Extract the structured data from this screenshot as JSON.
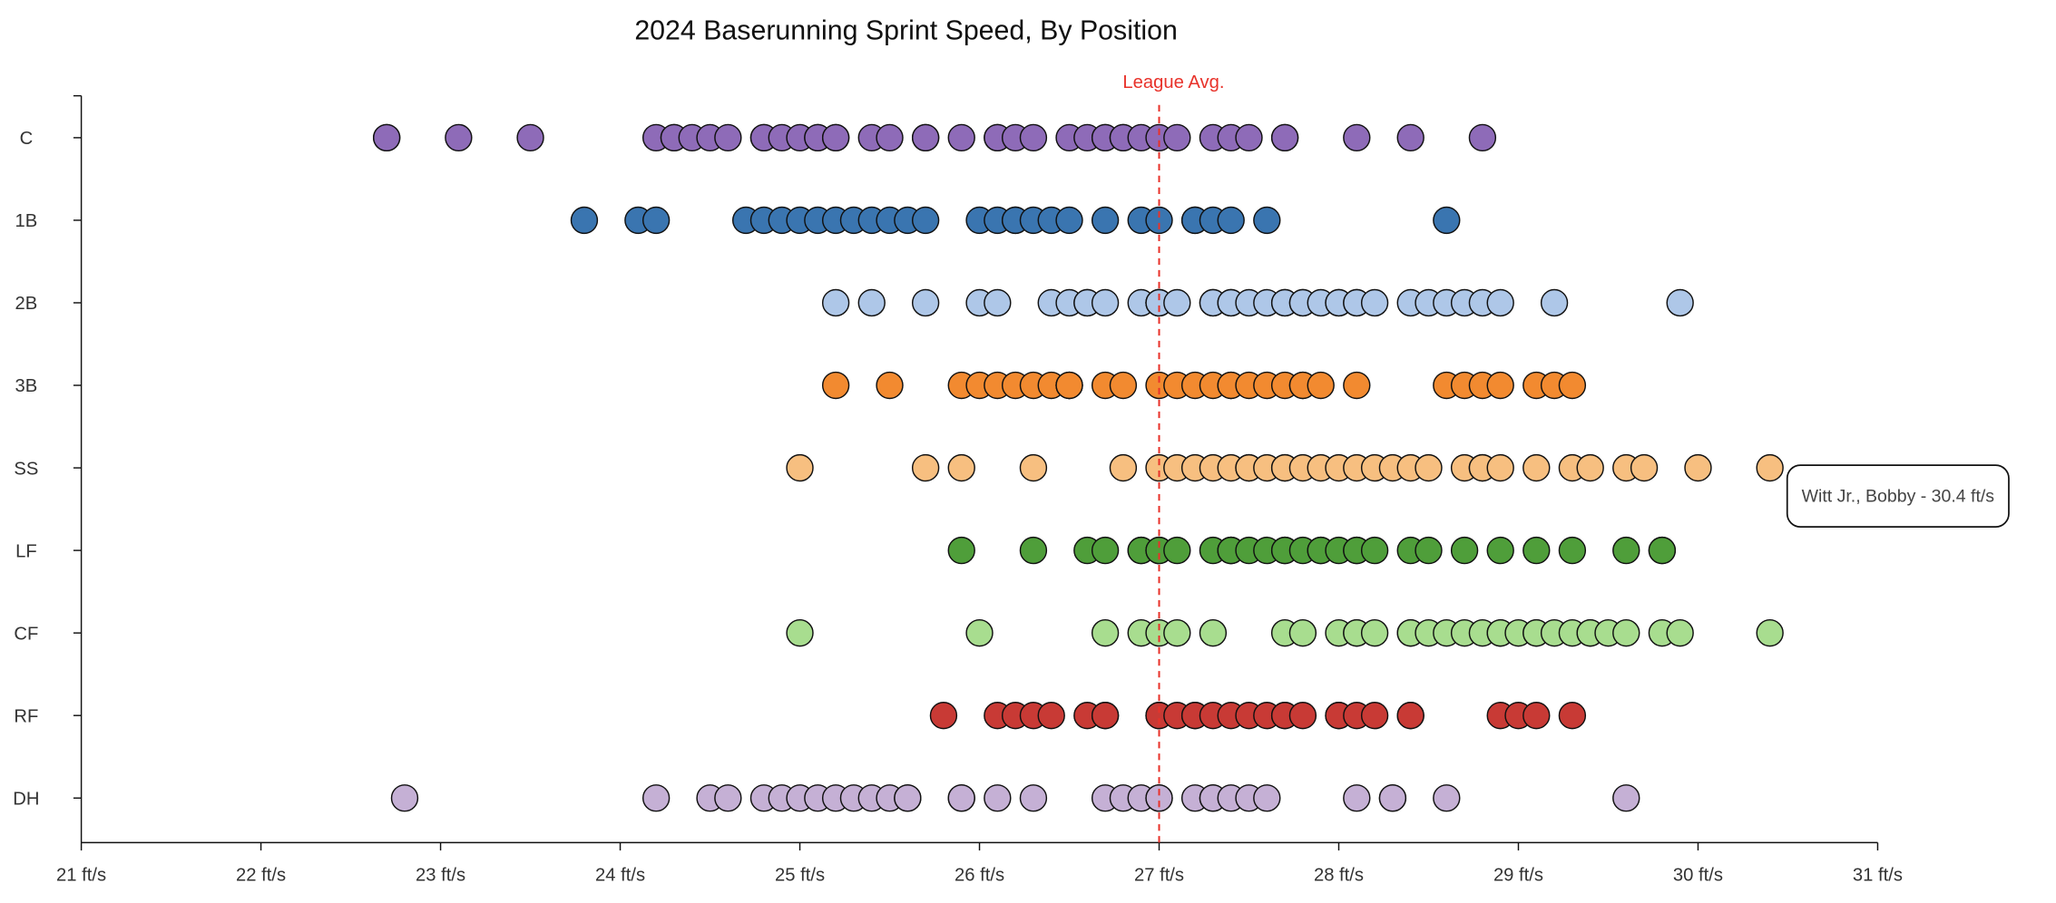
{
  "chart_data": {
    "type": "scatter",
    "title": "2024 Baserunning Sprint Speed, By Position",
    "xlabel": "",
    "ylabel": "",
    "xlim": [
      21,
      31
    ],
    "x_ticks": [
      21,
      22,
      23,
      24,
      25,
      26,
      27,
      28,
      29,
      30,
      31
    ],
    "x_tick_suffix": " ft/s",
    "x_tick_labels": [
      "21 ft/s",
      "22 ft/s",
      "23 ft/s",
      "24 ft/s",
      "25 ft/s",
      "26 ft/s",
      "27 ft/s",
      "28 ft/s",
      "29 ft/s",
      "30 ft/s",
      "31 ft/s"
    ],
    "grid": false,
    "legend": "none",
    "reference_line": {
      "label": "League Avg.",
      "value": 27.0,
      "color": "#e8322a",
      "style": "dashed"
    },
    "tooltip": {
      "text": "Witt Jr., Bobby - 30.4 ft/s",
      "category": "SS",
      "value": 30.4
    },
    "categories": [
      "C",
      "1B",
      "2B",
      "3B",
      "SS",
      "LF",
      "CF",
      "RF",
      "DH"
    ],
    "series": [
      {
        "category": "C",
        "color": "#8e6bb8",
        "values": [
          22.7,
          22.7,
          23.1,
          23.5,
          24.2,
          24.3,
          24.3,
          24.4,
          24.5,
          24.6,
          24.8,
          24.8,
          24.9,
          25.0,
          25.1,
          25.1,
          25.2,
          25.2,
          25.4,
          25.5,
          25.7,
          25.7,
          25.9,
          26.1,
          26.1,
          26.2,
          26.3,
          26.5,
          26.6,
          26.7,
          26.7,
          26.8,
          26.8,
          26.9,
          27.0,
          27.1,
          27.3,
          27.4,
          27.5,
          27.7,
          27.7,
          28.1,
          28.4,
          28.8
        ]
      },
      {
        "category": "1B",
        "color": "#3a75b0",
        "values": [
          23.8,
          24.1,
          24.2,
          24.7,
          24.8,
          24.9,
          25.0,
          25.1,
          25.2,
          25.3,
          25.4,
          25.5,
          25.6,
          25.7,
          26.0,
          26.1,
          26.2,
          26.2,
          26.3,
          26.4,
          26.5,
          26.7,
          26.9,
          27.0,
          27.2,
          27.2,
          27.3,
          27.4,
          27.6,
          28.6
        ]
      },
      {
        "category": "2B",
        "color": "#aec7e8",
        "values": [
          25.2,
          25.4,
          25.7,
          26.0,
          26.1,
          26.4,
          26.5,
          26.6,
          26.6,
          26.7,
          26.9,
          27.0,
          27.0,
          27.0,
          27.1,
          27.3,
          27.3,
          27.4,
          27.4,
          27.5,
          27.6,
          27.7,
          27.7,
          27.8,
          27.8,
          27.9,
          28.0,
          28.0,
          28.1,
          28.1,
          28.2,
          28.4,
          28.5,
          28.6,
          28.7,
          28.8,
          28.9,
          29.2,
          29.9
        ]
      },
      {
        "category": "3B",
        "color": "#f28a30",
        "values": [
          25.2,
          25.5,
          25.9,
          26.0,
          26.1,
          26.2,
          26.3,
          26.4,
          26.5,
          26.5,
          26.5,
          26.7,
          26.8,
          27.0,
          27.1,
          27.2,
          27.3,
          27.4,
          27.4,
          27.5,
          27.6,
          27.7,
          27.8,
          27.8,
          27.9,
          28.1,
          28.6,
          28.7,
          28.8,
          28.9,
          29.1,
          29.2,
          29.3
        ]
      },
      {
        "category": "SS",
        "color": "#f7bf80",
        "values": [
          25.0,
          25.7,
          25.9,
          26.3,
          26.8,
          27.0,
          27.1,
          27.2,
          27.3,
          27.4,
          27.5,
          27.5,
          27.6,
          27.7,
          27.7,
          27.8,
          27.9,
          28.0,
          28.1,
          28.2,
          28.3,
          28.4,
          28.5,
          28.7,
          28.8,
          28.8,
          28.9,
          29.1,
          29.3,
          29.4,
          29.6,
          29.7,
          30.0,
          30.4
        ]
      },
      {
        "category": "LF",
        "color": "#4f9e3a",
        "values": [
          25.9,
          26.3,
          26.6,
          26.7,
          26.9,
          26.9,
          27.0,
          27.0,
          27.1,
          27.3,
          27.4,
          27.4,
          27.4,
          27.5,
          27.6,
          27.7,
          27.7,
          27.8,
          27.9,
          27.9,
          28.0,
          28.1,
          28.1,
          28.2,
          28.4,
          28.5,
          28.7,
          28.9,
          29.1,
          29.3,
          29.6,
          29.8,
          29.8
        ]
      },
      {
        "category": "CF",
        "color": "#a8dd8f",
        "values": [
          25.0,
          26.0,
          26.7,
          26.9,
          27.0,
          27.1,
          27.3,
          27.7,
          27.8,
          28.0,
          28.1,
          28.1,
          28.2,
          28.4,
          28.4,
          28.5,
          28.6,
          28.7,
          28.8,
          28.9,
          28.9,
          29.0,
          29.1,
          29.1,
          29.2,
          29.3,
          29.4,
          29.4,
          29.5,
          29.6,
          29.8,
          29.9,
          30.4
        ]
      },
      {
        "category": "RF",
        "color": "#c83a35",
        "values": [
          25.8,
          26.1,
          26.2,
          26.3,
          26.4,
          26.6,
          26.7,
          26.7,
          27.0,
          27.0,
          27.1,
          27.2,
          27.2,
          27.3,
          27.4,
          27.5,
          27.6,
          27.7,
          27.7,
          27.8,
          28.0,
          28.0,
          28.1,
          28.2,
          28.4,
          28.4,
          28.9,
          29.0,
          29.1,
          29.3
        ]
      },
      {
        "category": "DH",
        "color": "#c5b0d5",
        "values": [
          22.8,
          24.2,
          24.5,
          24.6,
          24.8,
          24.9,
          25.0,
          25.1,
          25.2,
          25.3,
          25.4,
          25.5,
          25.6,
          25.6,
          25.9,
          25.9,
          26.1,
          26.3,
          26.7,
          26.8,
          26.9,
          27.0,
          27.0,
          27.2,
          27.3,
          27.3,
          27.4,
          27.5,
          27.6,
          28.1,
          28.3,
          28.3,
          28.6,
          29.6
        ]
      }
    ]
  }
}
